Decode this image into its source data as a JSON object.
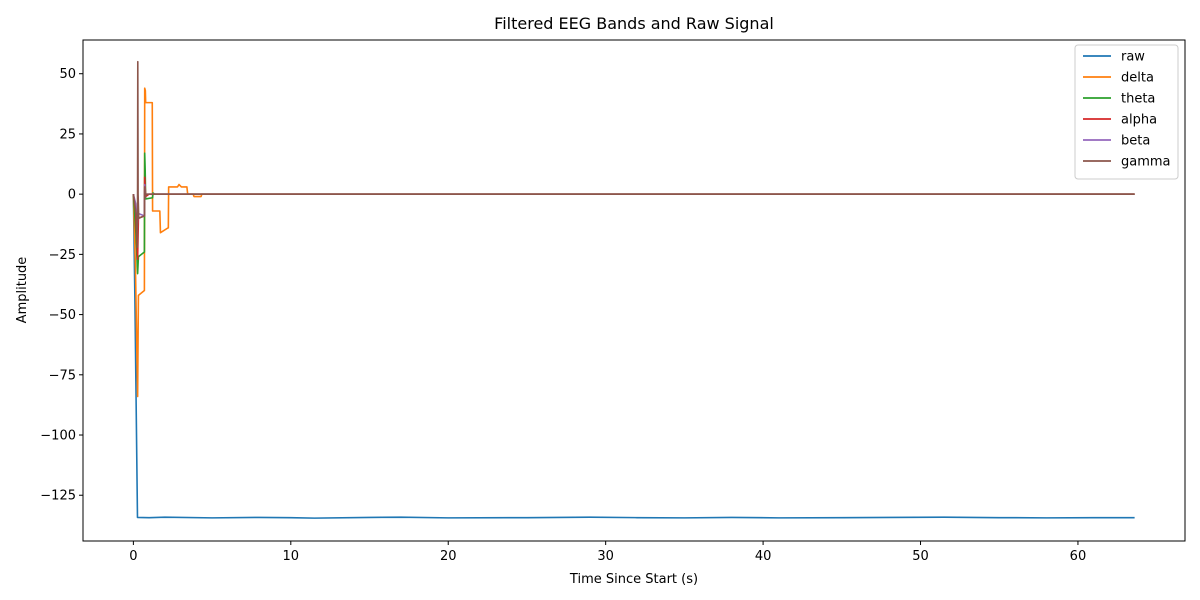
{
  "chart_data": {
    "type": "line",
    "title": "Filtered EEG Bands and Raw Signal",
    "xlabel": "Time Since Start (s)",
    "ylabel": "Amplitude",
    "xlim": [
      -3.2,
      66.8
    ],
    "ylim": [
      -144,
      64
    ],
    "xticks": [
      0,
      10,
      20,
      30,
      40,
      50,
      60
    ],
    "yticks": [
      50,
      25,
      0,
      -25,
      -50,
      -75,
      -100,
      -125
    ],
    "ytick_labels": [
      "50",
      "25",
      "0",
      "−25",
      "−50",
      "−75",
      "−100",
      "−125"
    ],
    "grid": false,
    "legend_position": "top-right",
    "series": [
      {
        "name": "raw",
        "color": "#1f77b4",
        "x": [
          0,
          0.1,
          0.26,
          0.26,
          1.0,
          2.0,
          5.0,
          8.0,
          10.0,
          11.5,
          15.0,
          17.0,
          20.0,
          25.0,
          29.0,
          32.0,
          35.0,
          38.0,
          41.0,
          45.0,
          48.0,
          51.5,
          55.0,
          58.0,
          61.0,
          63.6
        ],
        "y": [
          0,
          -45,
          -134,
          -134.2,
          -134.3,
          -134.1,
          -134.4,
          -134.2,
          -134.3,
          -134.5,
          -134.2,
          -134.1,
          -134.4,
          -134.3,
          -134.1,
          -134.3,
          -134.4,
          -134.2,
          -134.4,
          -134.3,
          -134.2,
          -134.1,
          -134.3,
          -134.4,
          -134.3,
          -134.3
        ]
      },
      {
        "name": "delta",
        "color": "#ff7f0e",
        "x": [
          0,
          0.13,
          0.27,
          0.32,
          0.7,
          0.72,
          0.76,
          0.78,
          1.2,
          1.22,
          1.68,
          1.72,
          2.2,
          2.22,
          2.24,
          2.26,
          2.8,
          2.9,
          3.05,
          3.1,
          3.4,
          3.45,
          3.8,
          3.85,
          4.3,
          4.35,
          10,
          20,
          30,
          40,
          50,
          63.6
        ],
        "y": [
          0,
          -30,
          -84,
          -42,
          -40,
          44,
          43,
          38,
          38,
          -7,
          -7,
          -16,
          -14,
          -14,
          3,
          3,
          3,
          4,
          3,
          3,
          3,
          0,
          0,
          -1,
          -1,
          0,
          0,
          0,
          0,
          0,
          0,
          0
        ]
      },
      {
        "name": "theta",
        "color": "#2ca02c",
        "x": [
          0,
          0.15,
          0.27,
          0.32,
          0.7,
          0.72,
          0.75,
          0.78,
          1.22,
          1.25,
          1.35,
          2.0,
          63.6
        ],
        "y": [
          0,
          -15,
          -33,
          -26,
          -24,
          17,
          10,
          -2,
          -1.5,
          0.5,
          0,
          0,
          0
        ]
      },
      {
        "name": "alpha",
        "color": "#d62728",
        "x": [
          0,
          0.15,
          0.27,
          0.32,
          0.7,
          0.72,
          0.75,
          0.78,
          1.0,
          63.6
        ],
        "y": [
          0,
          -8,
          -27,
          -10,
          -9,
          7,
          3,
          -1,
          0,
          0
        ]
      },
      {
        "name": "beta",
        "color": "#9467bd",
        "x": [
          0,
          0.15,
          0.26,
          0.3,
          0.7,
          0.72,
          0.76,
          0.8,
          63.6
        ],
        "y": [
          0,
          -4,
          -12,
          -8,
          -9,
          4,
          -1,
          0,
          0
        ]
      },
      {
        "name": "gamma",
        "color": "#8c564b",
        "x": [
          0,
          0.2,
          0.26,
          0.28,
          0.3,
          0.34,
          0.7,
          0.72,
          0.76,
          0.8,
          63.6
        ],
        "y": [
          0,
          -10,
          -22,
          55,
          0,
          -10,
          -9,
          3,
          -1,
          0,
          0
        ]
      }
    ]
  }
}
